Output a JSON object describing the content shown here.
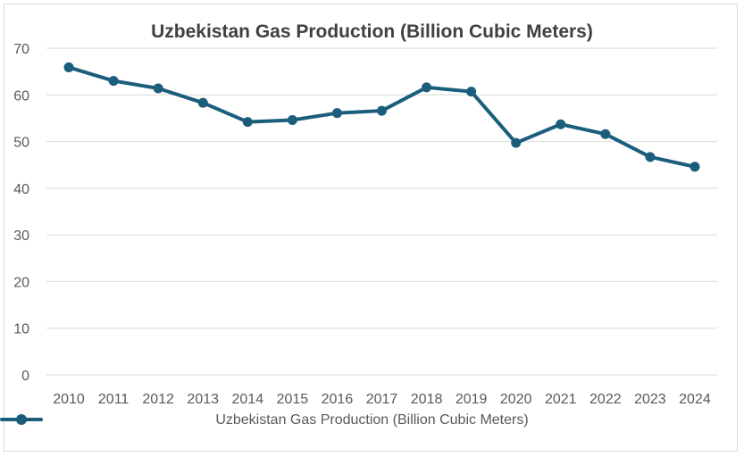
{
  "chart_data": {
    "type": "line",
    "title": "Uzbekistan Gas Production (Billion Cubic Meters)",
    "xlabel": "",
    "ylabel": "",
    "categories": [
      "2010",
      "2011",
      "2012",
      "2013",
      "2014",
      "2015",
      "2016",
      "2017",
      "2018",
      "2019",
      "2020",
      "2021",
      "2022",
      "2023",
      "2024"
    ],
    "series": [
      {
        "name": "Uzbekistan Gas Production (Billion Cubic Meters)",
        "values": [
          65.9,
          63.0,
          61.4,
          58.3,
          54.2,
          54.6,
          56.1,
          56.6,
          61.6,
          60.7,
          49.7,
          53.7,
          51.6,
          46.7,
          44.6
        ],
        "color": "#1b5e7c"
      }
    ],
    "ylim": [
      0,
      70
    ],
    "yticks": [
      0,
      10,
      20,
      30,
      40,
      50,
      60,
      70
    ],
    "grid": true,
    "legend": "bottom"
  }
}
